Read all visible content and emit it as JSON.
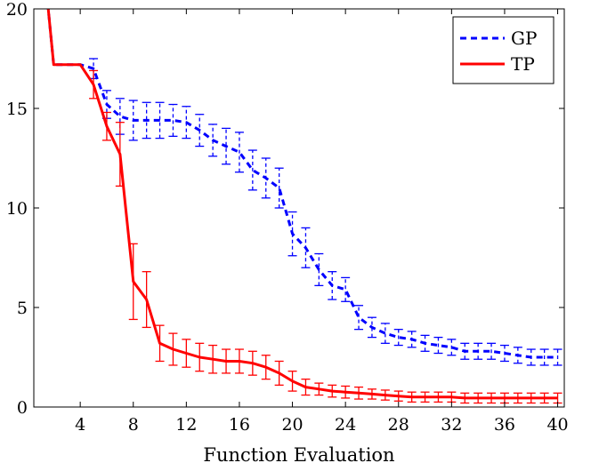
{
  "chart_data": {
    "type": "line",
    "title": "",
    "xlabel": "Function Evaluation",
    "ylabel": "",
    "xlim": [
      0.5,
      40.5
    ],
    "ylim": [
      0,
      20
    ],
    "xticks": [
      4,
      8,
      12,
      16,
      20,
      24,
      28,
      32,
      36,
      40
    ],
    "xtick_labels": [
      "4",
      "8",
      "12",
      "16",
      "20",
      "24",
      "28",
      "32",
      "36",
      "40"
    ],
    "yticks": [
      0,
      5,
      10,
      15,
      20
    ],
    "ytick_labels": [
      "0",
      "5",
      "10",
      "15",
      "20"
    ],
    "grid": false,
    "legend_position": "top-right",
    "x": [
      1,
      2,
      3,
      4,
      5,
      6,
      7,
      8,
      9,
      10,
      11,
      12,
      13,
      14,
      15,
      16,
      17,
      18,
      19,
      20,
      21,
      22,
      23,
      24,
      25,
      26,
      27,
      28,
      29,
      30,
      31,
      32,
      33,
      34,
      35,
      36,
      37,
      38,
      39,
      40
    ],
    "series": [
      {
        "name": "GP",
        "color": "#0000ff",
        "style": "dashed",
        "values": [
          24,
          17.2,
          17.2,
          17.2,
          17.0,
          15.2,
          14.6,
          14.4,
          14.4,
          14.4,
          14.4,
          14.3,
          13.9,
          13.4,
          13.1,
          12.8,
          11.9,
          11.5,
          11.0,
          8.7,
          8.0,
          6.9,
          6.1,
          5.9,
          4.5,
          4.0,
          3.7,
          3.5,
          3.4,
          3.2,
          3.1,
          3.0,
          2.8,
          2.8,
          2.8,
          2.7,
          2.6,
          2.5,
          2.5,
          2.5
        ],
        "err": [
          0,
          0,
          0,
          0,
          0.5,
          0.7,
          0.9,
          1.0,
          0.9,
          0.9,
          0.8,
          0.8,
          0.8,
          0.8,
          0.9,
          1.0,
          1.0,
          1.0,
          1.0,
          1.1,
          1.0,
          0.8,
          0.7,
          0.6,
          0.6,
          0.5,
          0.5,
          0.4,
          0.4,
          0.4,
          0.4,
          0.4,
          0.4,
          0.4,
          0.4,
          0.4,
          0.4,
          0.4,
          0.4,
          0.4
        ]
      },
      {
        "name": "TP",
        "color": "#ff0000",
        "style": "solid",
        "values": [
          24,
          17.2,
          17.2,
          17.2,
          16.2,
          14.1,
          12.7,
          6.3,
          5.4,
          3.2,
          2.9,
          2.7,
          2.5,
          2.4,
          2.3,
          2.3,
          2.2,
          2.0,
          1.7,
          1.3,
          1.0,
          0.9,
          0.8,
          0.75,
          0.7,
          0.65,
          0.6,
          0.55,
          0.5,
          0.5,
          0.5,
          0.5,
          0.45,
          0.45,
          0.45,
          0.45,
          0.45,
          0.45,
          0.45,
          0.45
        ],
        "err": [
          0,
          0,
          0,
          0,
          0.7,
          0.7,
          1.6,
          1.9,
          1.4,
          0.9,
          0.8,
          0.7,
          0.7,
          0.7,
          0.6,
          0.6,
          0.6,
          0.6,
          0.6,
          0.5,
          0.4,
          0.3,
          0.3,
          0.3,
          0.3,
          0.25,
          0.25,
          0.25,
          0.25,
          0.25,
          0.25,
          0.25,
          0.25,
          0.25,
          0.25,
          0.25,
          0.25,
          0.25,
          0.25,
          0.25
        ]
      }
    ]
  }
}
